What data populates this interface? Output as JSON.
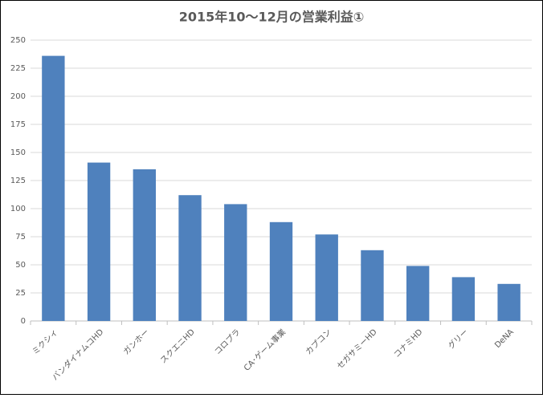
{
  "chart_data": {
    "type": "bar",
    "title": "2015年10～12月の営業利益①",
    "categories": [
      "ミクシィ",
      "バンダイナムコHD",
      "ガンホー",
      "スクエニHD",
      "コロプラ",
      "CA･ゲーム事業",
      "カプコン",
      "セガサミーHD",
      "コナミHD",
      "グリー",
      "DeNA"
    ],
    "values": [
      236,
      141,
      135,
      112,
      104,
      88,
      77,
      63,
      49,
      39,
      33
    ],
    "color": "#4f81bd",
    "ylim": [
      0,
      250
    ],
    "yticks": [
      0,
      25,
      50,
      75,
      100,
      125,
      150,
      175,
      200,
      225,
      250
    ],
    "grid": true
  }
}
